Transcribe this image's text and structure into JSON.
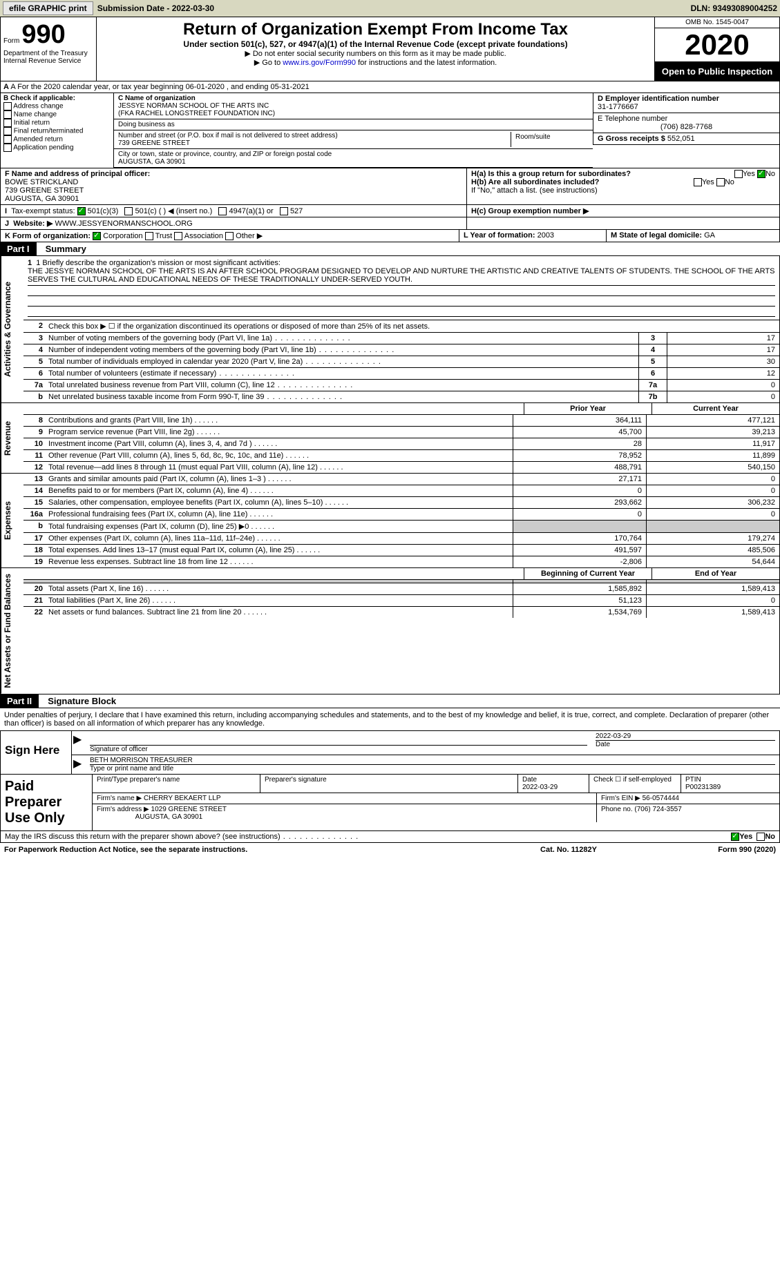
{
  "topbar": {
    "efile": "efile GRAPHIC print",
    "submission_label": "Submission Date - 2022-03-30",
    "dln": "DLN: 93493089004252"
  },
  "header": {
    "form_label": "Form",
    "form_num": "990",
    "dept": "Department of the Treasury\nInternal Revenue Service",
    "title": "Return of Organization Exempt From Income Tax",
    "sub1": "Under section 501(c), 527, or 4947(a)(1) of the Internal Revenue Code (except private foundations)",
    "sub2": "▶ Do not enter social security numbers on this form as it may be made public.",
    "sub3_prefix": "▶ Go to ",
    "sub3_link": "www.irs.gov/Form990",
    "sub3_suffix": " for instructions and the latest information.",
    "omb": "OMB No. 1545-0047",
    "year": "2020",
    "public": "Open to Public Inspection"
  },
  "rowA": "A For the 2020 calendar year, or tax year beginning 06-01-2020    , and ending 05-31-2021",
  "checksB": {
    "header": "B Check if applicable:",
    "items": [
      "Address change",
      "Name change",
      "Initial return",
      "Final return/terminated",
      "Amended return",
      "Application pending"
    ]
  },
  "orgC": {
    "label": "C Name of organization",
    "name": "JESSYE NORMAN SCHOOL OF THE ARTS INC",
    "fka": "(FKA RACHEL LONGSTREET FOUNDATION INC)",
    "dba_label": "Doing business as",
    "addr_label": "Number and street (or P.O. box if mail is not delivered to street address)",
    "addr": "739 GREENE STREET",
    "room_label": "Room/suite",
    "city_label": "City or town, state or province, country, and ZIP or foreign postal code",
    "city": "AUGUSTA, GA  30901"
  },
  "rightD": {
    "ein_label": "D Employer identification number",
    "ein": "31-1776667",
    "tel_label": "E Telephone number",
    "tel": "(706) 828-7768",
    "gross_label": "G Gross receipts $",
    "gross": "552,051"
  },
  "officerF": {
    "label": "F  Name and address of principal officer:",
    "name": "BOWE STRICKLAND",
    "addr1": "739 GREENE STREET",
    "addr2": "AUGUSTA, GA  30901"
  },
  "H": {
    "a_label": "H(a)  Is this a group return for subordinates?",
    "b_label": "H(b)  Are all subordinates included?",
    "b_note": "If \"No,\" attach a list. (see instructions)",
    "c_label": "H(c)  Group exemption number ▶",
    "yes": "Yes",
    "no": "No"
  },
  "I": {
    "label": "Tax-exempt status:",
    "o501c3": "501(c)(3)",
    "o501c": "501(c) (  ) ◀ (insert no.)",
    "o4947": "4947(a)(1) or",
    "o527": "527"
  },
  "J": {
    "label": "Website: ▶",
    "value": "WWW.JESSYENORMANSCHOOL.ORG"
  },
  "K": {
    "label": "K Form of organization:",
    "corp": "Corporation",
    "trust": "Trust",
    "assoc": "Association",
    "other": "Other ▶"
  },
  "L": {
    "label": "L Year of formation:",
    "value": "2003"
  },
  "M": {
    "label": "M State of legal domicile:",
    "value": "GA"
  },
  "parts": {
    "p1": "Part I",
    "p1_title": "Summary",
    "p2": "Part II",
    "p2_title": "Signature Block"
  },
  "mission": {
    "label": "1  Briefly describe the organization's mission or most significant activities:",
    "text": "THE JESSYE NORMAN SCHOOL OF THE ARTS IS AN AFTER SCHOOL PROGRAM DESIGNED TO DEVELOP AND NURTURE THE ARTISTIC AND CREATIVE TALENTS OF STUDENTS. THE SCHOOL OF THE ARTS SERVES THE CULTURAL AND EDUCATIONAL NEEDS OF THESE TRADITIONALLY UNDER-SERVED YOUTH."
  },
  "governance_lines": {
    "l2": "Check this box ▶ ☐ if the organization discontinued its operations or disposed of more than 25% of its net assets.",
    "l3": {
      "desc": "Number of voting members of the governing body (Part VI, line 1a)",
      "n": "3",
      "v": "17"
    },
    "l4": {
      "desc": "Number of independent voting members of the governing body (Part VI, line 1b)",
      "n": "4",
      "v": "17"
    },
    "l5": {
      "desc": "Total number of individuals employed in calendar year 2020 (Part V, line 2a)",
      "n": "5",
      "v": "30"
    },
    "l6": {
      "desc": "Total number of volunteers (estimate if necessary)",
      "n": "6",
      "v": "12"
    },
    "l7a": {
      "desc": "Total unrelated business revenue from Part VIII, column (C), line 12",
      "n": "7a",
      "v": "0"
    },
    "l7b": {
      "desc": "Net unrelated business taxable income from Form 990-T, line 39",
      "n": "7b",
      "v": "0"
    }
  },
  "col_headers": {
    "prior": "Prior Year",
    "current": "Current Year",
    "beg": "Beginning of Current Year",
    "end": "End of Year"
  },
  "revenue_lines": [
    {
      "num": "8",
      "desc": "Contributions and grants (Part VIII, line 1h)",
      "prior": "364,111",
      "curr": "477,121"
    },
    {
      "num": "9",
      "desc": "Program service revenue (Part VIII, line 2g)",
      "prior": "45,700",
      "curr": "39,213"
    },
    {
      "num": "10",
      "desc": "Investment income (Part VIII, column (A), lines 3, 4, and 7d )",
      "prior": "28",
      "curr": "11,917"
    },
    {
      "num": "11",
      "desc": "Other revenue (Part VIII, column (A), lines 5, 6d, 8c, 9c, 10c, and 11e)",
      "prior": "78,952",
      "curr": "11,899"
    },
    {
      "num": "12",
      "desc": "Total revenue—add lines 8 through 11 (must equal Part VIII, column (A), line 12)",
      "prior": "488,791",
      "curr": "540,150"
    }
  ],
  "expense_lines": [
    {
      "num": "13",
      "desc": "Grants and similar amounts paid (Part IX, column (A), lines 1–3 )",
      "prior": "27,171",
      "curr": "0"
    },
    {
      "num": "14",
      "desc": "Benefits paid to or for members (Part IX, column (A), line 4)",
      "prior": "0",
      "curr": "0"
    },
    {
      "num": "15",
      "desc": "Salaries, other compensation, employee benefits (Part IX, column (A), lines 5–10)",
      "prior": "293,662",
      "curr": "306,232"
    },
    {
      "num": "16a",
      "desc": "Professional fundraising fees (Part IX, column (A), line 11e)",
      "prior": "0",
      "curr": "0"
    },
    {
      "num": "b",
      "desc": "Total fundraising expenses (Part IX, column (D), line 25) ▶0",
      "prior": "",
      "curr": ""
    },
    {
      "num": "17",
      "desc": "Other expenses (Part IX, column (A), lines 11a–11d, 11f–24e)",
      "prior": "170,764",
      "curr": "179,274"
    },
    {
      "num": "18",
      "desc": "Total expenses. Add lines 13–17 (must equal Part IX, column (A), line 25)",
      "prior": "491,597",
      "curr": "485,506"
    },
    {
      "num": "19",
      "desc": "Revenue less expenses. Subtract line 18 from line 12",
      "prior": "-2,806",
      "curr": "54,644"
    }
  ],
  "netassets_lines": [
    {
      "num": "20",
      "desc": "Total assets (Part X, line 16)",
      "prior": "1,585,892",
      "curr": "1,589,413"
    },
    {
      "num": "21",
      "desc": "Total liabilities (Part X, line 26)",
      "prior": "51,123",
      "curr": "0"
    },
    {
      "num": "22",
      "desc": "Net assets or fund balances. Subtract line 21 from line 20",
      "prior": "1,534,769",
      "curr": "1,589,413"
    }
  ],
  "tabs": {
    "gov": "Activities & Governance",
    "rev": "Revenue",
    "exp": "Expenses",
    "net": "Net Assets or Fund Balances"
  },
  "sig": {
    "intro": "Under penalties of perjury, I declare that I have examined this return, including accompanying schedules and statements, and to the best of my knowledge and belief, it is true, correct, and complete. Declaration of preparer (other than officer) is based on all information of which preparer has any knowledge.",
    "sign_here": "Sign Here",
    "sig_officer": "Signature of officer",
    "date": "2022-03-29",
    "date_label": "Date",
    "name_title": "BETH MORRISON TREASURER",
    "type_label": "Type or print name and title"
  },
  "prep": {
    "title": "Paid Preparer Use Only",
    "print_label": "Print/Type preparer's name",
    "sig_label": "Preparer's signature",
    "date_label": "Date",
    "date": "2022-03-29",
    "check_label": "Check ☐ if self-employed",
    "ptin_label": "PTIN",
    "ptin": "P00231389",
    "firm_name_label": "Firm's name    ▶",
    "firm_name": "CHERRY BEKAERT LLP",
    "firm_ein_label": "Firm's EIN ▶",
    "firm_ein": "56-0574444",
    "firm_addr_label": "Firm's address ▶",
    "firm_addr1": "1029 GREENE STREET",
    "firm_addr2": "AUGUSTA, GA  30901",
    "phone_label": "Phone no.",
    "phone": "(706) 724-3557"
  },
  "may_discuss": "May the IRS discuss this return with the preparer shown above? (see instructions)",
  "footer": {
    "left": "For Paperwork Reduction Act Notice, see the separate instructions.",
    "cat": "Cat. No. 11282Y",
    "right": "Form 990 (2020)"
  }
}
